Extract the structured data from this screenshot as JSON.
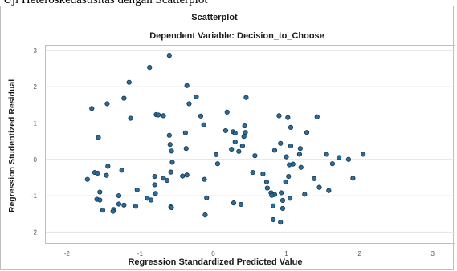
{
  "caption": "Uji Heteroskedastisitas dengan Scatterplot",
  "colors": {
    "background": "#ffffff",
    "frame": "#bfbfbf",
    "gridline": "#e3e3e3",
    "marker_fill": "#2d6c9a",
    "marker_edge": "#0f3550",
    "text": "#1a1a1a",
    "tick_text": "#555555"
  },
  "chart_data": {
    "type": "scatter",
    "title": "Scatterplot",
    "subtitle": "Dependent Variable: Decision_to_Choose",
    "xlabel": "Regression Standardized Predicted Value",
    "ylabel": "Regression Studentized Residual",
    "xlim": [
      -2.3,
      3.3
    ],
    "ylim": [
      -2.3,
      3.15
    ],
    "xticks": [
      -2,
      -1,
      0,
      1,
      2,
      3
    ],
    "xtick_labels": [
      "-2",
      "-1",
      "0",
      "1",
      "2",
      "3"
    ],
    "yticks": [
      -2,
      -1,
      0,
      1,
      2,
      3
    ],
    "ytick_labels": [
      "-2",
      "-1",
      "0",
      "1",
      "2",
      "3"
    ],
    "grid": "horizontal",
    "legend": "none",
    "points": [
      {
        "x": -0.6,
        "y": 2.86
      },
      {
        "x": -0.87,
        "y": 2.53
      },
      {
        "x": -1.15,
        "y": 2.12
      },
      {
        "x": -0.36,
        "y": 2.03
      },
      {
        "x": -0.23,
        "y": 1.72
      },
      {
        "x": 0.45,
        "y": 1.7
      },
      {
        "x": -1.22,
        "y": 1.68
      },
      {
        "x": -0.33,
        "y": 1.53
      },
      {
        "x": -1.45,
        "y": 1.53
      },
      {
        "x": -1.66,
        "y": 1.4
      },
      {
        "x": 0.19,
        "y": 1.3
      },
      {
        "x": -0.78,
        "y": 1.23
      },
      {
        "x": -0.75,
        "y": 1.22
      },
      {
        "x": -0.68,
        "y": 1.2
      },
      {
        "x": -0.17,
        "y": 1.19
      },
      {
        "x": 0.9,
        "y": 1.2
      },
      {
        "x": 1.02,
        "y": 1.15
      },
      {
        "x": 1.42,
        "y": 1.17
      },
      {
        "x": -1.13,
        "y": 1.13
      },
      {
        "x": -0.13,
        "y": 0.95
      },
      {
        "x": 0.43,
        "y": 0.92
      },
      {
        "x": 1.06,
        "y": 0.88
      },
      {
        "x": 0.17,
        "y": 0.79
      },
      {
        "x": 0.27,
        "y": 0.76
      },
      {
        "x": 0.44,
        "y": 0.74
      },
      {
        "x": 0.3,
        "y": 0.72
      },
      {
        "x": 1.28,
        "y": 0.74
      },
      {
        "x": -0.38,
        "y": 0.73
      },
      {
        "x": -0.6,
        "y": 0.66
      },
      {
        "x": 0.42,
        "y": 0.63
      },
      {
        "x": -1.57,
        "y": 0.6
      },
      {
        "x": 0.3,
        "y": 0.48
      },
      {
        "x": 0.92,
        "y": 0.44
      },
      {
        "x": -0.59,
        "y": 0.41
      },
      {
        "x": 0.4,
        "y": 0.37
      },
      {
        "x": 1.06,
        "y": 0.37
      },
      {
        "x": -0.37,
        "y": 0.3
      },
      {
        "x": 0.25,
        "y": 0.28
      },
      {
        "x": 0.35,
        "y": 0.22
      },
      {
        "x": 1.19,
        "y": 0.3
      },
      {
        "x": 0.84,
        "y": 0.25
      },
      {
        "x": -0.57,
        "y": 0.23
      },
      {
        "x": 1.55,
        "y": 0.14
      },
      {
        "x": 2.05,
        "y": 0.14
      },
      {
        "x": 0.04,
        "y": 0.13
      },
      {
        "x": 0.57,
        "y": 0.1
      },
      {
        "x": 1.18,
        "y": 0.14
      },
      {
        "x": 1.0,
        "y": 0.07
      },
      {
        "x": 1.72,
        "y": 0.05
      },
      {
        "x": 1.85,
        "y": 0.0
      },
      {
        "x": 1.63,
        "y": -0.12
      },
      {
        "x": 0.06,
        "y": -0.12
      },
      {
        "x": 1.09,
        "y": -0.13
      },
      {
        "x": 1.04,
        "y": -0.15
      },
      {
        "x": -1.44,
        "y": -0.19
      },
      {
        "x": -0.56,
        "y": -0.08
      },
      {
        "x": 1.2,
        "y": -0.22
      },
      {
        "x": -1.25,
        "y": -0.3
      },
      {
        "x": -0.58,
        "y": -0.35
      },
      {
        "x": 0.54,
        "y": -0.36
      },
      {
        "x": -1.62,
        "y": -0.36
      },
      {
        "x": 0.68,
        "y": -0.4
      },
      {
        "x": -0.36,
        "y": -0.43
      },
      {
        "x": -1.58,
        "y": -0.38
      },
      {
        "x": -1.46,
        "y": -0.44
      },
      {
        "x": -0.8,
        "y": -0.47
      },
      {
        "x": -0.42,
        "y": -0.46
      },
      {
        "x": -0.12,
        "y": -0.55
      },
      {
        "x": 1.03,
        "y": -0.47
      },
      {
        "x": 1.38,
        "y": -0.53
      },
      {
        "x": -1.72,
        "y": -0.55
      },
      {
        "x": -0.68,
        "y": -0.52
      },
      {
        "x": 0.73,
        "y": -0.62
      },
      {
        "x": -0.63,
        "y": -0.58
      },
      {
        "x": -0.8,
        "y": -0.7
      },
      {
        "x": 0.99,
        "y": -0.62
      },
      {
        "x": 1.91,
        "y": -0.52
      },
      {
        "x": 1.45,
        "y": -0.77
      },
      {
        "x": -1.04,
        "y": -0.84
      },
      {
        "x": 0.74,
        "y": -0.79
      },
      {
        "x": 1.58,
        "y": -0.86
      },
      {
        "x": 0.79,
        "y": -0.92
      },
      {
        "x": -0.79,
        "y": -0.94
      },
      {
        "x": -1.55,
        "y": -0.9
      },
      {
        "x": 0.93,
        "y": -0.92
      },
      {
        "x": 0.84,
        "y": -0.97
      },
      {
        "x": 0.8,
        "y": -0.99
      },
      {
        "x": 1.25,
        "y": -0.96
      },
      {
        "x": -1.29,
        "y": -1.0
      },
      {
        "x": -0.09,
        "y": -1.06
      },
      {
        "x": -0.9,
        "y": -1.07
      },
      {
        "x": 1.05,
        "y": -1.07
      },
      {
        "x": -1.59,
        "y": -1.1
      },
      {
        "x": -1.55,
        "y": -1.12
      },
      {
        "x": -0.85,
        "y": -1.12
      },
      {
        "x": 0.95,
        "y": -1.13
      },
      {
        "x": -1.29,
        "y": -1.23
      },
      {
        "x": 0.28,
        "y": -1.2
      },
      {
        "x": 0.38,
        "y": -1.24
      },
      {
        "x": -1.22,
        "y": -1.26
      },
      {
        "x": 0.82,
        "y": -1.28
      },
      {
        "x": -1.06,
        "y": -1.29
      },
      {
        "x": -0.58,
        "y": -1.31
      },
      {
        "x": -0.57,
        "y": -1.33
      },
      {
        "x": -1.36,
        "y": -1.38
      },
      {
        "x": 0.95,
        "y": -1.35
      },
      {
        "x": -1.51,
        "y": -1.4
      },
      {
        "x": -1.37,
        "y": -1.43
      },
      {
        "x": -0.11,
        "y": -1.53
      },
      {
        "x": 0.82,
        "y": -1.66
      },
      {
        "x": 0.92,
        "y": -1.73
      }
    ]
  }
}
